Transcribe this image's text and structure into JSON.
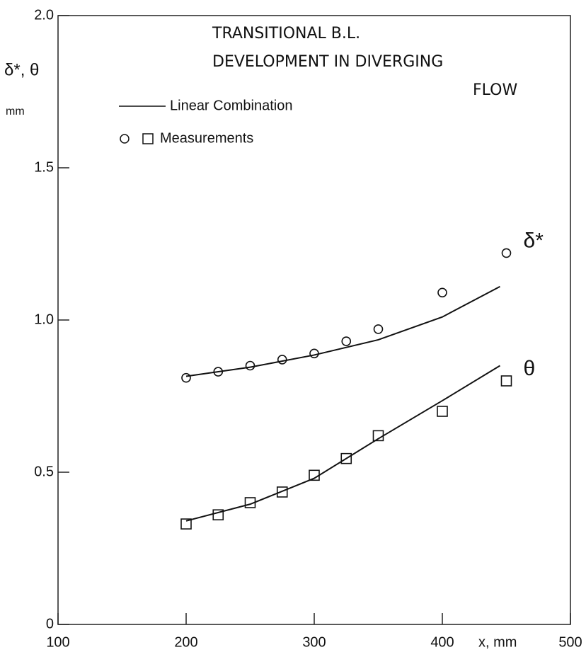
{
  "chart_data": {
    "type": "scatter",
    "title": [
      "TRANSITIONAL B.L.",
      "DEVELOPMENT IN DIVERGING",
      "FLOW"
    ],
    "x_label": "x, mm",
    "y_label": "δ*, θ",
    "y_unit": "mm",
    "legend": [
      "Linear Combination",
      "Measurements"
    ],
    "color": "#111111",
    "xlim": [
      100,
      500
    ],
    "ylim": [
      0,
      2
    ],
    "xticks": [
      100,
      200,
      300,
      400,
      500
    ],
    "yticks": [
      0,
      0.5,
      {
        "value": 1,
        "label": "1.0"
      },
      1.5,
      {
        "value": 2,
        "label": "2.0"
      }
    ],
    "series": [
      {
        "marker": "circle",
        "label": "δ*",
        "x": [
          200,
          225,
          250,
          275,
          300,
          325,
          350,
          400,
          450
        ],
        "values": [
          0.81,
          0.83,
          0.85,
          0.87,
          0.89,
          0.93,
          0.97,
          1.09,
          1.22
        ]
      },
      {
        "marker": "square",
        "label": "θ",
        "x": [
          200,
          225,
          250,
          275,
          300,
          325,
          350,
          400,
          450
        ],
        "values": [
          0.33,
          0.36,
          0.4,
          0.435,
          0.49,
          0.545,
          0.62,
          0.7,
          0.8
        ]
      }
    ],
    "fits": [
      {
        "x": [
          200,
          250,
          300,
          350,
          400,
          445
        ],
        "values": [
          0.815,
          0.845,
          0.885,
          0.935,
          1.01,
          1.11
        ]
      },
      {
        "x": [
          200,
          250,
          300,
          350,
          400,
          445
        ],
        "values": [
          0.34,
          0.395,
          0.48,
          0.61,
          0.735,
          0.85
        ]
      }
    ]
  }
}
